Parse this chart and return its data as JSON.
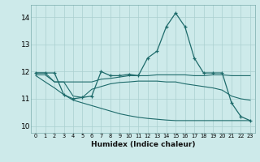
{
  "background_color": "#cdeaea",
  "grid_color": "#aacfcf",
  "line_color": "#1e6b6b",
  "xlabel": "Humidex (Indice chaleur)",
  "ylabel_ticks": [
    10,
    11,
    12,
    13,
    14
  ],
  "xlim": [
    -0.5,
    23.5
  ],
  "ylim": [
    9.75,
    14.45
  ],
  "xticks": [
    0,
    1,
    2,
    3,
    4,
    5,
    6,
    7,
    8,
    9,
    10,
    11,
    12,
    13,
    14,
    15,
    16,
    17,
    18,
    19,
    20,
    21,
    22,
    23
  ],
  "series": [
    {
      "x": [
        0,
        1,
        2,
        3,
        4,
        5,
        6,
        7,
        8,
        9,
        10,
        11,
        12,
        13,
        14,
        15,
        16,
        17,
        18,
        19,
        20,
        21,
        22,
        23
      ],
      "y": [
        11.95,
        11.95,
        11.95,
        11.15,
        11.0,
        11.05,
        11.1,
        12.0,
        11.85,
        11.85,
        11.9,
        11.85,
        12.5,
        12.75,
        13.65,
        14.15,
        13.65,
        12.5,
        11.95,
        11.95,
        11.95,
        10.85,
        10.35,
        10.2
      ],
      "marker": true
    },
    {
      "x": [
        0,
        1,
        2,
        3,
        4,
        5,
        6,
        7,
        8,
        9,
        10,
        11,
        12,
        13,
        14,
        15,
        16,
        17,
        18,
        19,
        20,
        21,
        22,
        23
      ],
      "y": [
        11.95,
        11.95,
        11.62,
        11.62,
        11.62,
        11.62,
        11.62,
        11.72,
        11.75,
        11.8,
        11.85,
        11.85,
        11.85,
        11.88,
        11.88,
        11.88,
        11.88,
        11.85,
        11.85,
        11.88,
        11.88,
        11.85,
        11.85,
        11.85
      ],
      "marker": false
    },
    {
      "x": [
        0,
        1,
        2,
        3,
        4,
        5,
        6,
        7,
        8,
        9,
        10,
        11,
        12,
        13,
        14,
        15,
        16,
        17,
        18,
        19,
        20,
        21,
        22,
        23
      ],
      "y": [
        11.88,
        11.88,
        11.62,
        11.62,
        11.1,
        11.05,
        11.35,
        11.45,
        11.55,
        11.6,
        11.62,
        11.65,
        11.65,
        11.65,
        11.62,
        11.62,
        11.55,
        11.5,
        11.45,
        11.4,
        11.32,
        11.1,
        11.0,
        10.95
      ],
      "marker": false
    },
    {
      "x": [
        0,
        1,
        2,
        3,
        4,
        5,
        6,
        7,
        8,
        9,
        10,
        11,
        12,
        13,
        14,
        15,
        16,
        17,
        18,
        19,
        20,
        21,
        22,
        23
      ],
      "y": [
        11.85,
        11.62,
        11.4,
        11.15,
        10.95,
        10.85,
        10.75,
        10.65,
        10.55,
        10.45,
        10.38,
        10.32,
        10.28,
        10.25,
        10.22,
        10.2,
        10.2,
        10.2,
        10.2,
        10.2,
        10.2,
        10.2,
        10.2,
        10.2
      ],
      "marker": false
    }
  ]
}
